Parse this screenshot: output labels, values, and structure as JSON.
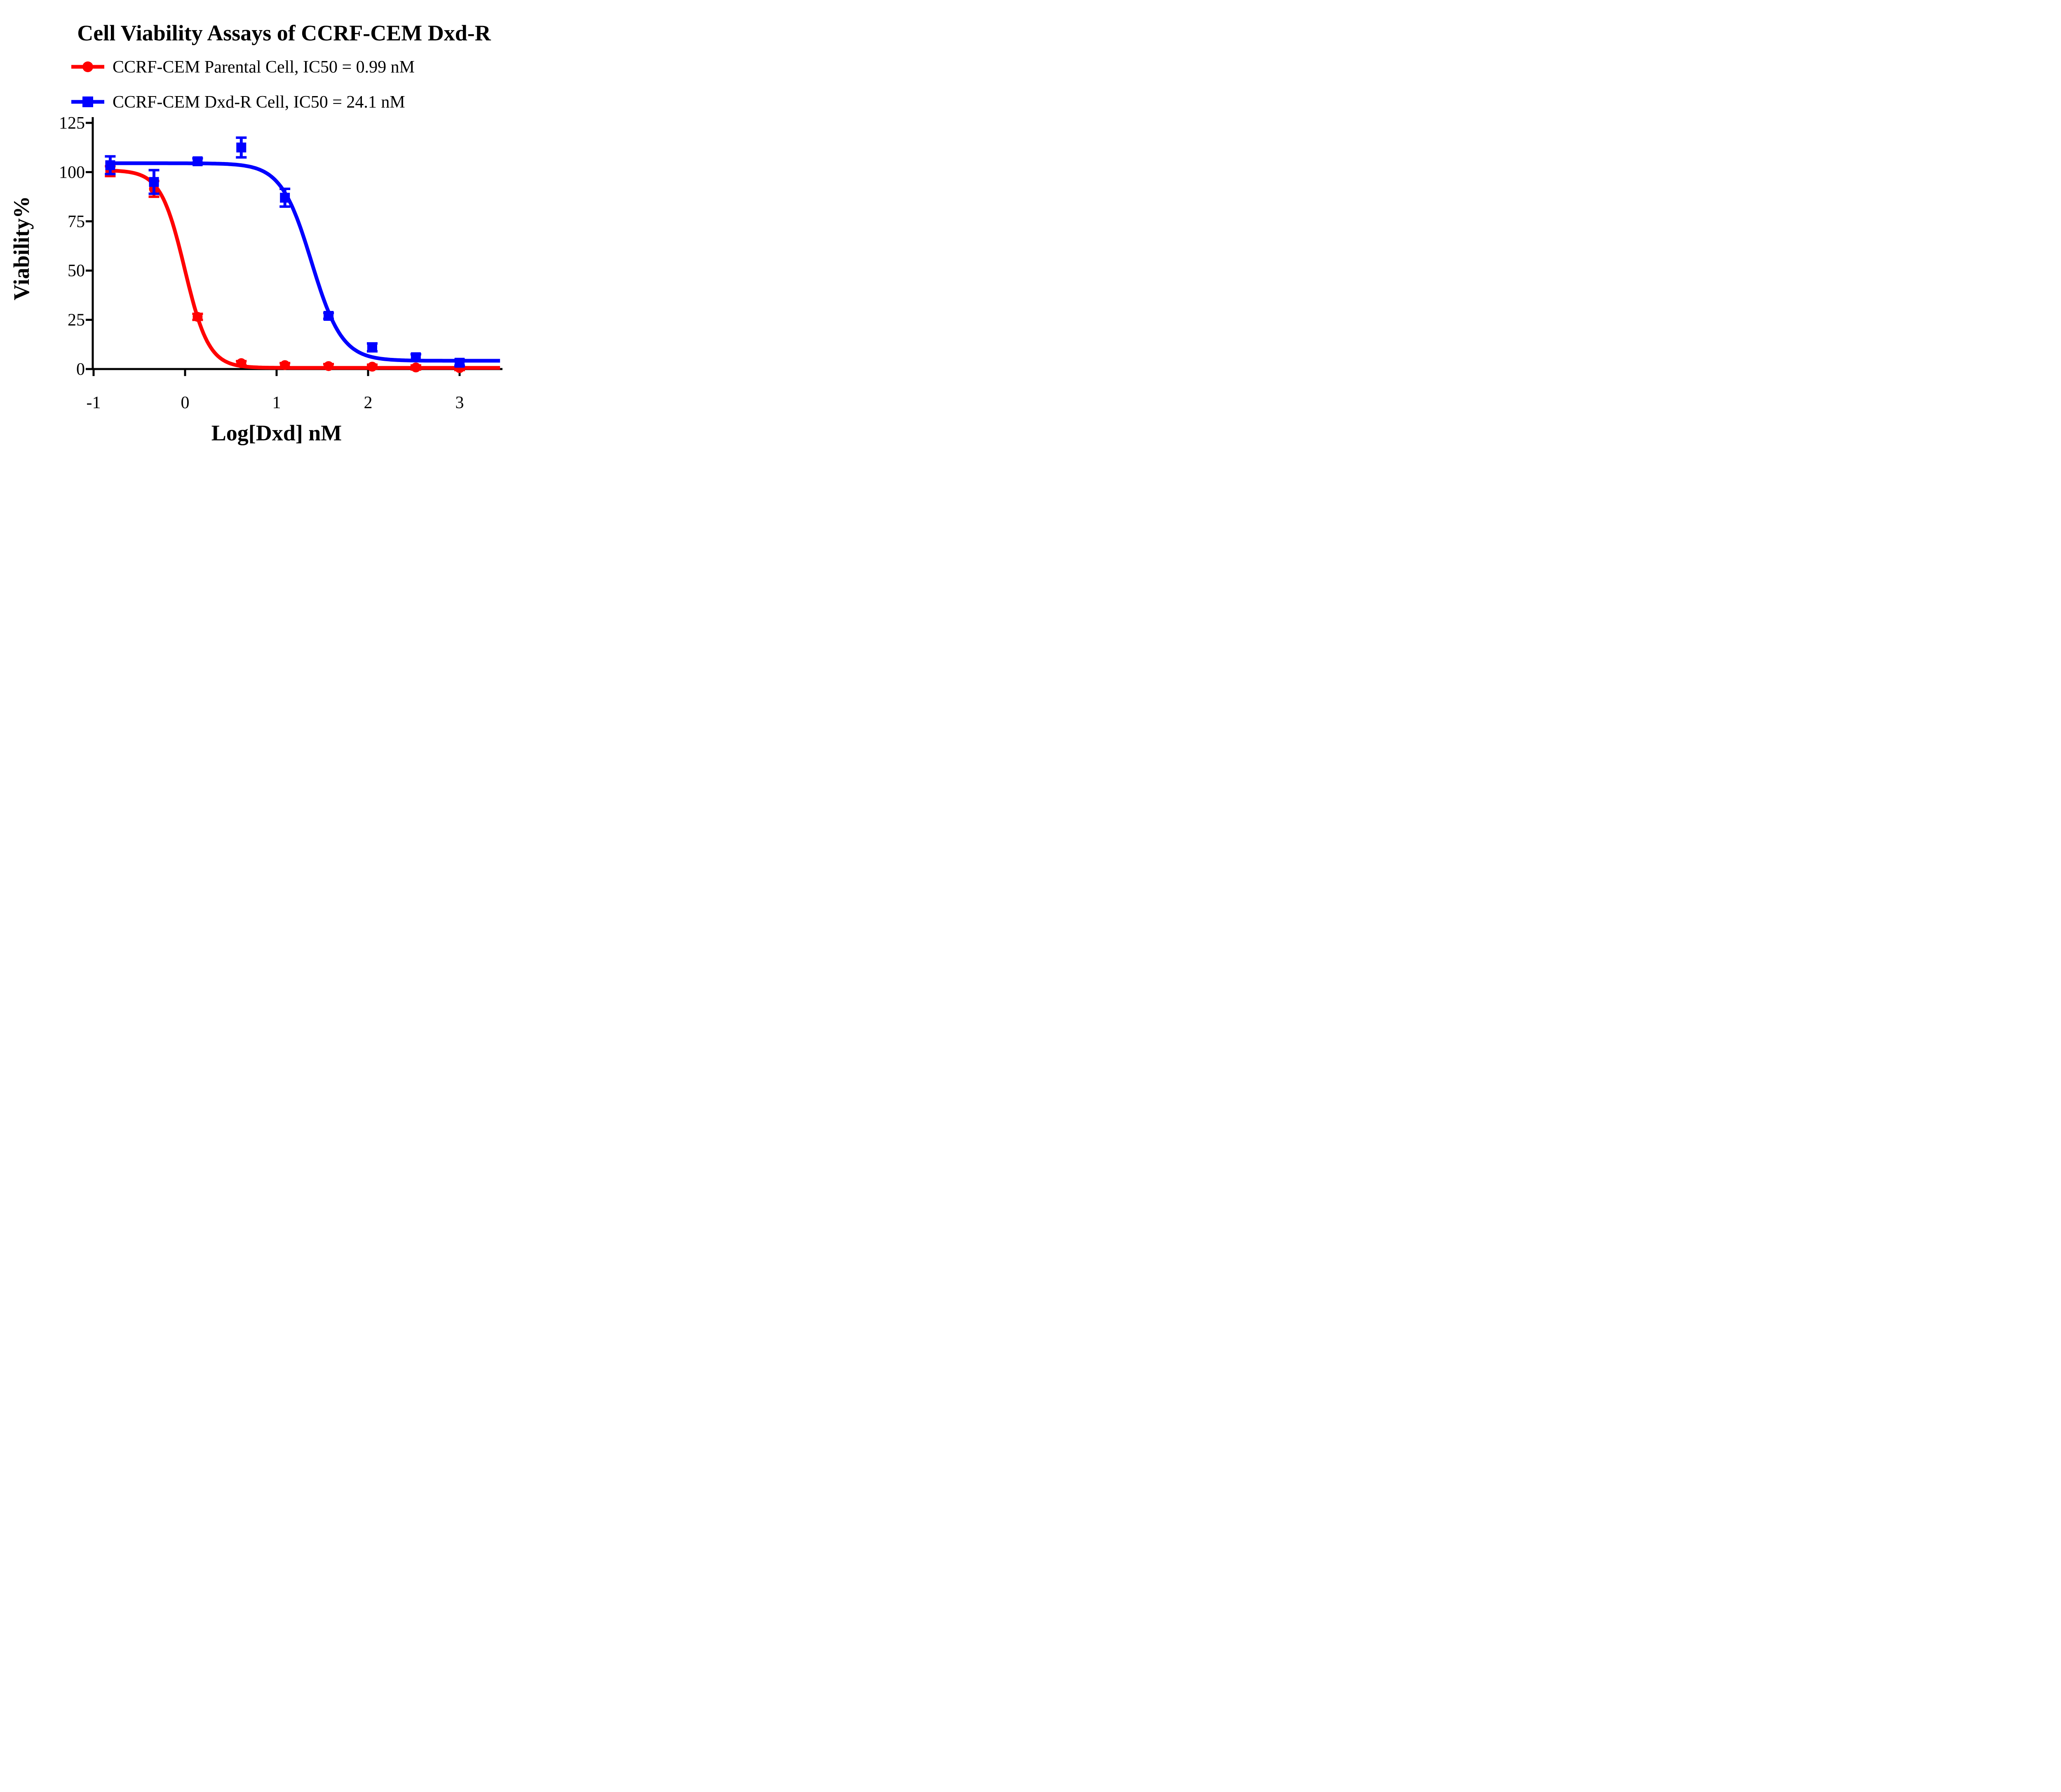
{
  "title": "Cell Viability Assays of CCRF-CEM Dxd-R",
  "legend": [
    {
      "label": "CCRF-CEM Parental Cell, IC50 = 0.99 nM",
      "marker": "circle",
      "color": "#FF0000"
    },
    {
      "label": "CCRF-CEM Dxd-R Cell, IC50 = 24.1 nM",
      "marker": "square",
      "color": "#0000FF"
    }
  ],
  "chart_data": {
    "type": "line",
    "title": "Cell Viability Assays of CCRF-CEM Dxd-R",
    "xlabel": "Log[Dxd] nM",
    "ylabel": "Viability%",
    "xlim": [
      -1,
      3.45
    ],
    "ylim": [
      0,
      125
    ],
    "x_ticks": [
      "-1",
      "0",
      "1",
      "2",
      "3"
    ],
    "y_ticks": [
      "0",
      "25",
      "50",
      "75",
      "100",
      "125"
    ],
    "grid": false,
    "legend_position": "top-left",
    "x": [
      -0.818,
      -0.34,
      0.137,
      0.614,
      1.091,
      1.568,
      2.045,
      2.522,
      3.0
    ],
    "series": [
      {
        "name": "CCRF-CEM Parental Cell",
        "color": "#FF0000",
        "marker": "circle",
        "ic50_nM": 0.99,
        "values": [
          100.5,
          91.5,
          26.5,
          3.0,
          2.0,
          1.5,
          1.2,
          0.8,
          0.5
        ],
        "errors": [
          2.5,
          4.0,
          1.5,
          1.0,
          1.0,
          1.0,
          1.0,
          1.0,
          1.0
        ],
        "fit": {
          "top": 101,
          "bottom": 0.6,
          "logIC50": -0.004,
          "hill": 3.3
        }
      },
      {
        "name": "CCRF-CEM Dxd-R Cell",
        "color": "#0000FF",
        "marker": "square",
        "ic50_nM": 24.1,
        "values": [
          103.5,
          95.0,
          105.5,
          112.5,
          87.0,
          27.0,
          11.0,
          6.0,
          3.2
        ],
        "errors": [
          4.5,
          6.0,
          1.5,
          5.0,
          4.5,
          1.5,
          2.0,
          1.5,
          1.5
        ],
        "fit": {
          "top": 104.5,
          "bottom": 4.2,
          "logIC50": 1.382,
          "hill": 2.6
        }
      }
    ]
  }
}
